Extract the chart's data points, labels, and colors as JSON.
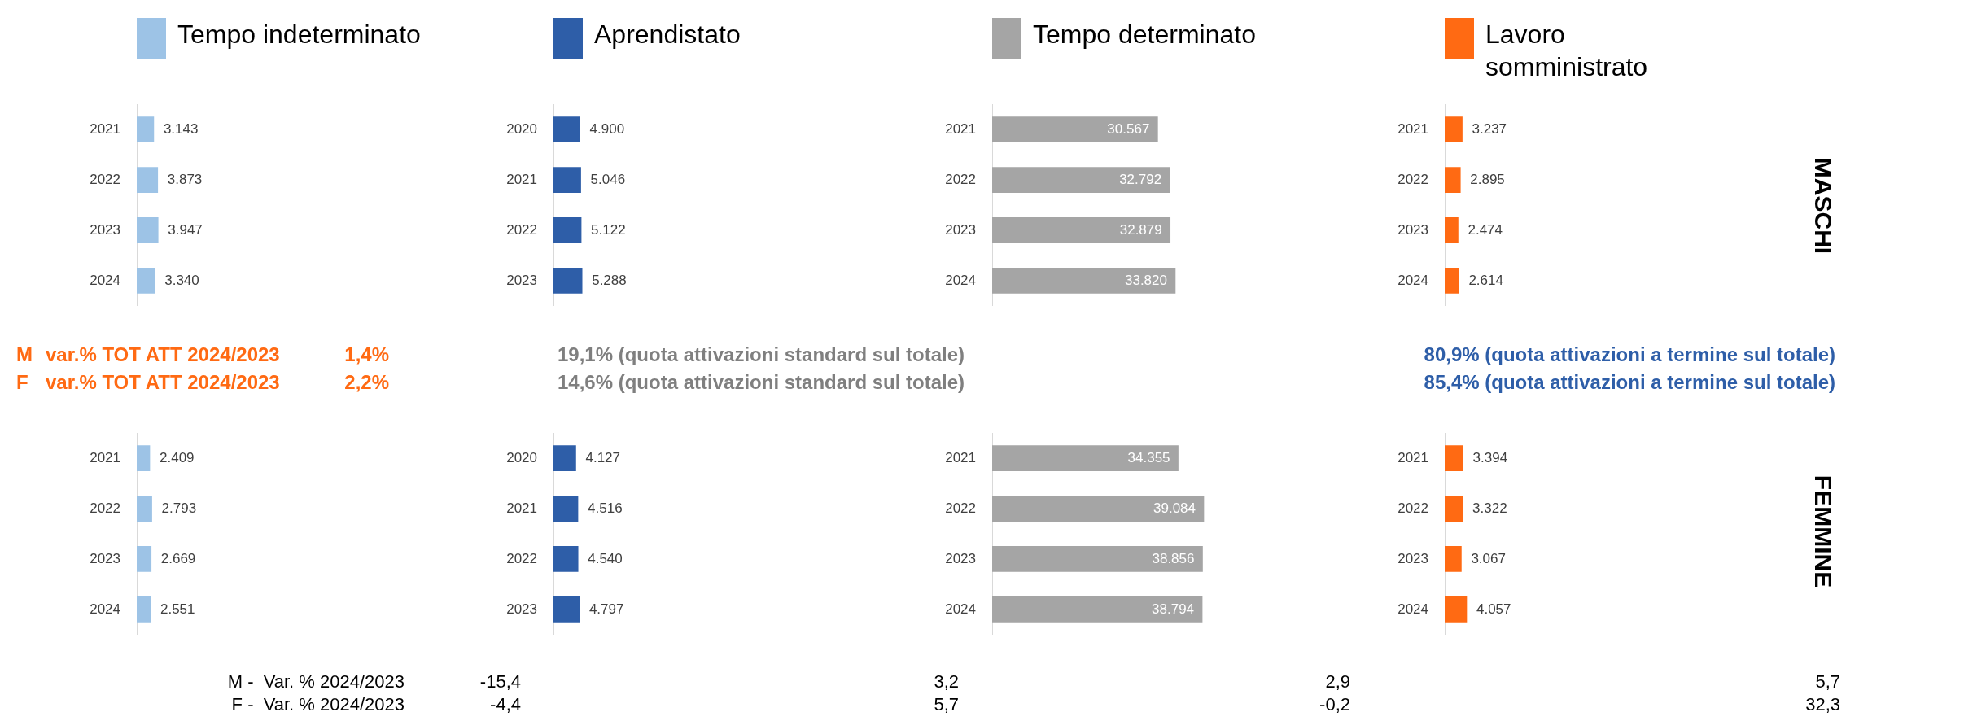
{
  "chart_data": [
    {
      "type": "bar",
      "orientation": "horizontal",
      "categories": [
        "2021",
        "2022",
        "2023",
        "2024"
      ],
      "series": [
        {
          "name": "Tempo indeterminato",
          "color": "#9dc3e6",
          "values": [
            3143,
            3873,
            3947,
            3340
          ],
          "value_labels": [
            "3.143",
            "3.873",
            "3.947",
            "3.340"
          ]
        }
      ],
      "legend": "top"
    },
    {
      "type": "bar",
      "orientation": "horizontal",
      "categories": [
        "2020",
        "2021",
        "2022",
        "2023"
      ],
      "series": [
        {
          "name": "Aprendistato",
          "color": "#2e5ea8",
          "values": [
            4900,
            5046,
            5122,
            5288
          ],
          "value_labels": [
            "4.900",
            "5.046",
            "5.122",
            "5.288"
          ]
        }
      ],
      "legend": "top"
    },
    {
      "type": "bar",
      "orientation": "horizontal",
      "categories": [
        "2021",
        "2022",
        "2023",
        "2024"
      ],
      "series": [
        {
          "name": "Tempo determinato",
          "color": "#a5a5a5",
          "values": [
            30567,
            32792,
            32879,
            33820
          ],
          "value_labels": [
            "30.567",
            "32.792",
            "32.879",
            "33.820"
          ]
        }
      ],
      "legend": "top"
    },
    {
      "type": "bar",
      "orientation": "horizontal",
      "categories": [
        "2021",
        "2022",
        "2023",
        "2024"
      ],
      "series": [
        {
          "name": "Lavoro somministrato",
          "color": "#ff6a13",
          "values": [
            3237,
            2895,
            2474,
            2614
          ],
          "value_labels": [
            "3.237",
            "2.895",
            "2.474",
            "2.614"
          ]
        }
      ],
      "legend": "top"
    },
    {
      "type": "bar",
      "orientation": "horizontal",
      "categories": [
        "2021",
        "2022",
        "2023",
        "2024"
      ],
      "series": [
        {
          "color": "#9dc3e6",
          "values": [
            2409,
            2793,
            2669,
            2551
          ],
          "value_labels": [
            "2.409",
            "2.793",
            "2.669",
            "2.551"
          ]
        }
      ]
    },
    {
      "type": "bar",
      "orientation": "horizontal",
      "categories": [
        "2020",
        "2021",
        "2022",
        "2023"
      ],
      "series": [
        {
          "color": "#2e5ea8",
          "values": [
            4127,
            4516,
            4540,
            4797
          ],
          "value_labels": [
            "4.127",
            "4.516",
            "4.540",
            "4.797"
          ]
        }
      ]
    },
    {
      "type": "bar",
      "orientation": "horizontal",
      "categories": [
        "2021",
        "2022",
        "2023",
        "2024"
      ],
      "series": [
        {
          "color": "#a5a5a5",
          "values": [
            34355,
            39084,
            38856,
            38794
          ],
          "value_labels": [
            "34.355",
            "39.084",
            "38.856",
            "38.794"
          ]
        }
      ]
    },
    {
      "type": "bar",
      "orientation": "horizontal",
      "categories": [
        "2021",
        "2022",
        "2023",
        "2024"
      ],
      "series": [
        {
          "color": "#ff6a13",
          "values": [
            3394,
            3322,
            3067,
            4057
          ],
          "value_labels": [
            "3.394",
            "3.322",
            "3.067",
            "4.057"
          ]
        }
      ]
    },
    {
      "type": "other",
      "annotations": [
        "MASCHI",
        "FEMMINE",
        "M",
        "var.% TOT ATT 2024/2023",
        "1,4%",
        "F",
        "var.% TOT ATT 2024/2023",
        "2,2%",
        "19,1% (quota attivazioni standard sul totale)",
        "14,6% (quota attivazioni standard sul totale)",
        "80,9% (quota attivazioni a termine sul totale)",
        "85,4% (quota attivazioni a termine sul totale)",
        "M -  Var. % 2024/2023",
        "-15,4",
        "3,2",
        "2,9",
        "5,7",
        "F -  Var. % 2024/2023",
        "-4,4",
        "5,7",
        "-0,2",
        "32,3"
      ]
    }
  ]
}
